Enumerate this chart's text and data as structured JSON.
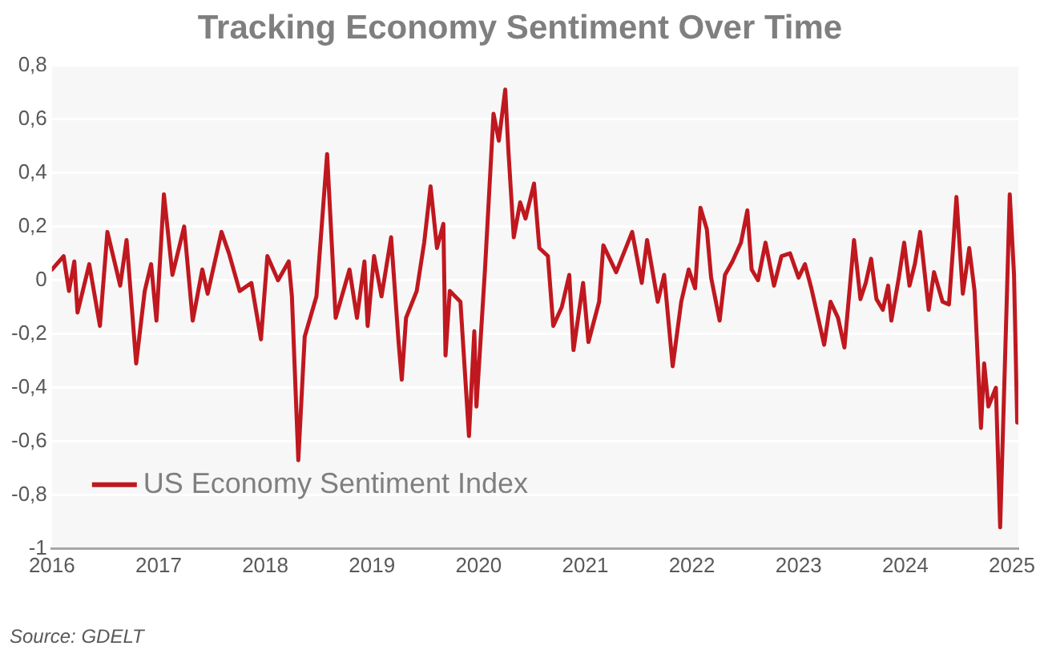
{
  "chart_data": {
    "type": "line",
    "title": "Tracking Economy Sentiment Over Time",
    "annotations": [
      "Source: GDELT"
    ],
    "xlim": [
      2016,
      2025.06
    ],
    "xticks": [
      2016,
      2017,
      2018,
      2019,
      2020,
      2021,
      2022,
      2023,
      2024,
      2025
    ],
    "ylim": [
      -1,
      0.8
    ],
    "yticks": [
      {
        "value": -1,
        "label": "-1"
      },
      {
        "value": -0.8,
        "label": "-0,8"
      },
      {
        "value": -0.6,
        "label": "-0,6"
      },
      {
        "value": -0.4,
        "label": "-0,4"
      },
      {
        "value": -0.2,
        "label": "-0,2"
      },
      {
        "value": 0,
        "label": "0"
      },
      {
        "value": 0.2,
        "label": "0,2"
      },
      {
        "value": 0.4,
        "label": "0,4"
      },
      {
        "value": 0.6,
        "label": "0,6"
      },
      {
        "value": 0.8,
        "label": "0,8"
      }
    ],
    "grid": "y",
    "legend": "bottom left",
    "marker": "none",
    "line_style": "solid",
    "series": [
      {
        "name": "US Economy Sentiment Index",
        "color": "#c0181f",
        "x": [
          2016.0,
          2016.11,
          2016.16,
          2016.21,
          2016.24,
          2016.35,
          2016.45,
          2016.52,
          2016.64,
          2016.7,
          2016.79,
          2016.87,
          2016.93,
          2016.98,
          2017.05,
          2017.13,
          2017.24,
          2017.32,
          2017.41,
          2017.46,
          2017.59,
          2017.66,
          2017.76,
          2017.87,
          2017.96,
          2018.02,
          2018.12,
          2018.22,
          2018.25,
          2018.31,
          2018.37,
          2018.48,
          2018.58,
          2018.66,
          2018.79,
          2018.86,
          2018.93,
          2018.96,
          2019.02,
          2019.09,
          2019.18,
          2019.25,
          2019.28,
          2019.32,
          2019.42,
          2019.49,
          2019.55,
          2019.61,
          2019.67,
          2019.69,
          2019.73,
          2019.83,
          2019.91,
          2019.96,
          2019.98,
          2020.06,
          2020.14,
          2020.19,
          2020.25,
          2020.28,
          2020.33,
          2020.39,
          2020.44,
          2020.52,
          2020.57,
          2020.65,
          2020.7,
          2020.78,
          2020.85,
          2020.89,
          2020.98,
          2021.03,
          2021.13,
          2021.17,
          2021.29,
          2021.44,
          2021.53,
          2021.58,
          2021.68,
          2021.74,
          2021.82,
          2021.9,
          2021.97,
          2022.03,
          2022.08,
          2022.14,
          2022.18,
          2022.26,
          2022.31,
          2022.38,
          2022.46,
          2022.52,
          2022.56,
          2022.62,
          2022.69,
          2022.77,
          2022.84,
          2022.92,
          2023.0,
          2023.06,
          2023.12,
          2023.24,
          2023.3,
          2023.37,
          2023.43,
          2023.52,
          2023.58,
          2023.63,
          2023.68,
          2023.73,
          2023.79,
          2023.84,
          2023.87,
          2023.94,
          2023.99,
          2024.04,
          2024.09,
          2024.14,
          2024.22,
          2024.27,
          2024.35,
          2024.41,
          2024.45,
          2024.48,
          2024.54,
          2024.6,
          2024.65,
          2024.71,
          2024.74,
          2024.78,
          2024.85,
          2024.89,
          2024.95,
          2024.98,
          2025.02,
          2025.05,
          2025.06
        ],
        "values": [
          0.04,
          0.09,
          -0.04,
          0.07,
          -0.12,
          0.06,
          -0.17,
          0.18,
          -0.02,
          0.15,
          -0.31,
          -0.04,
          0.06,
          -0.15,
          0.32,
          0.02,
          0.2,
          -0.15,
          0.04,
          -0.05,
          0.18,
          0.1,
          -0.04,
          -0.01,
          -0.22,
          0.09,
          0.0,
          0.07,
          -0.06,
          -0.67,
          -0.21,
          -0.06,
          0.47,
          -0.14,
          0.04,
          -0.14,
          0.07,
          -0.17,
          0.09,
          -0.06,
          0.16,
          -0.23,
          -0.37,
          -0.14,
          -0.04,
          0.14,
          0.35,
          0.12,
          0.21,
          -0.28,
          -0.04,
          -0.08,
          -0.58,
          -0.19,
          -0.47,
          0.04,
          0.62,
          0.52,
          0.71,
          0.48,
          0.16,
          0.29,
          0.23,
          0.36,
          0.12,
          0.09,
          -0.17,
          -0.1,
          0.02,
          -0.26,
          -0.01,
          -0.23,
          -0.08,
          0.13,
          0.03,
          0.18,
          -0.01,
          0.15,
          -0.08,
          0.02,
          -0.32,
          -0.08,
          0.04,
          -0.03,
          0.27,
          0.19,
          0.01,
          -0.15,
          0.02,
          0.07,
          0.14,
          0.26,
          0.04,
          0.0,
          0.14,
          -0.02,
          0.09,
          0.1,
          0.01,
          0.06,
          -0.03,
          -0.24,
          -0.08,
          -0.14,
          -0.25,
          0.15,
          -0.07,
          -0.01,
          0.08,
          -0.07,
          -0.11,
          -0.02,
          -0.15,
          0.01,
          0.14,
          -0.02,
          0.06,
          0.18,
          -0.11,
          0.03,
          -0.08,
          -0.09,
          0.13,
          0.31,
          -0.05,
          0.12,
          -0.04,
          -0.55,
          -0.31,
          -0.47,
          -0.4,
          -0.92,
          -0.1,
          0.32,
          0.02,
          -0.53,
          -0.51
        ]
      }
    ]
  }
}
